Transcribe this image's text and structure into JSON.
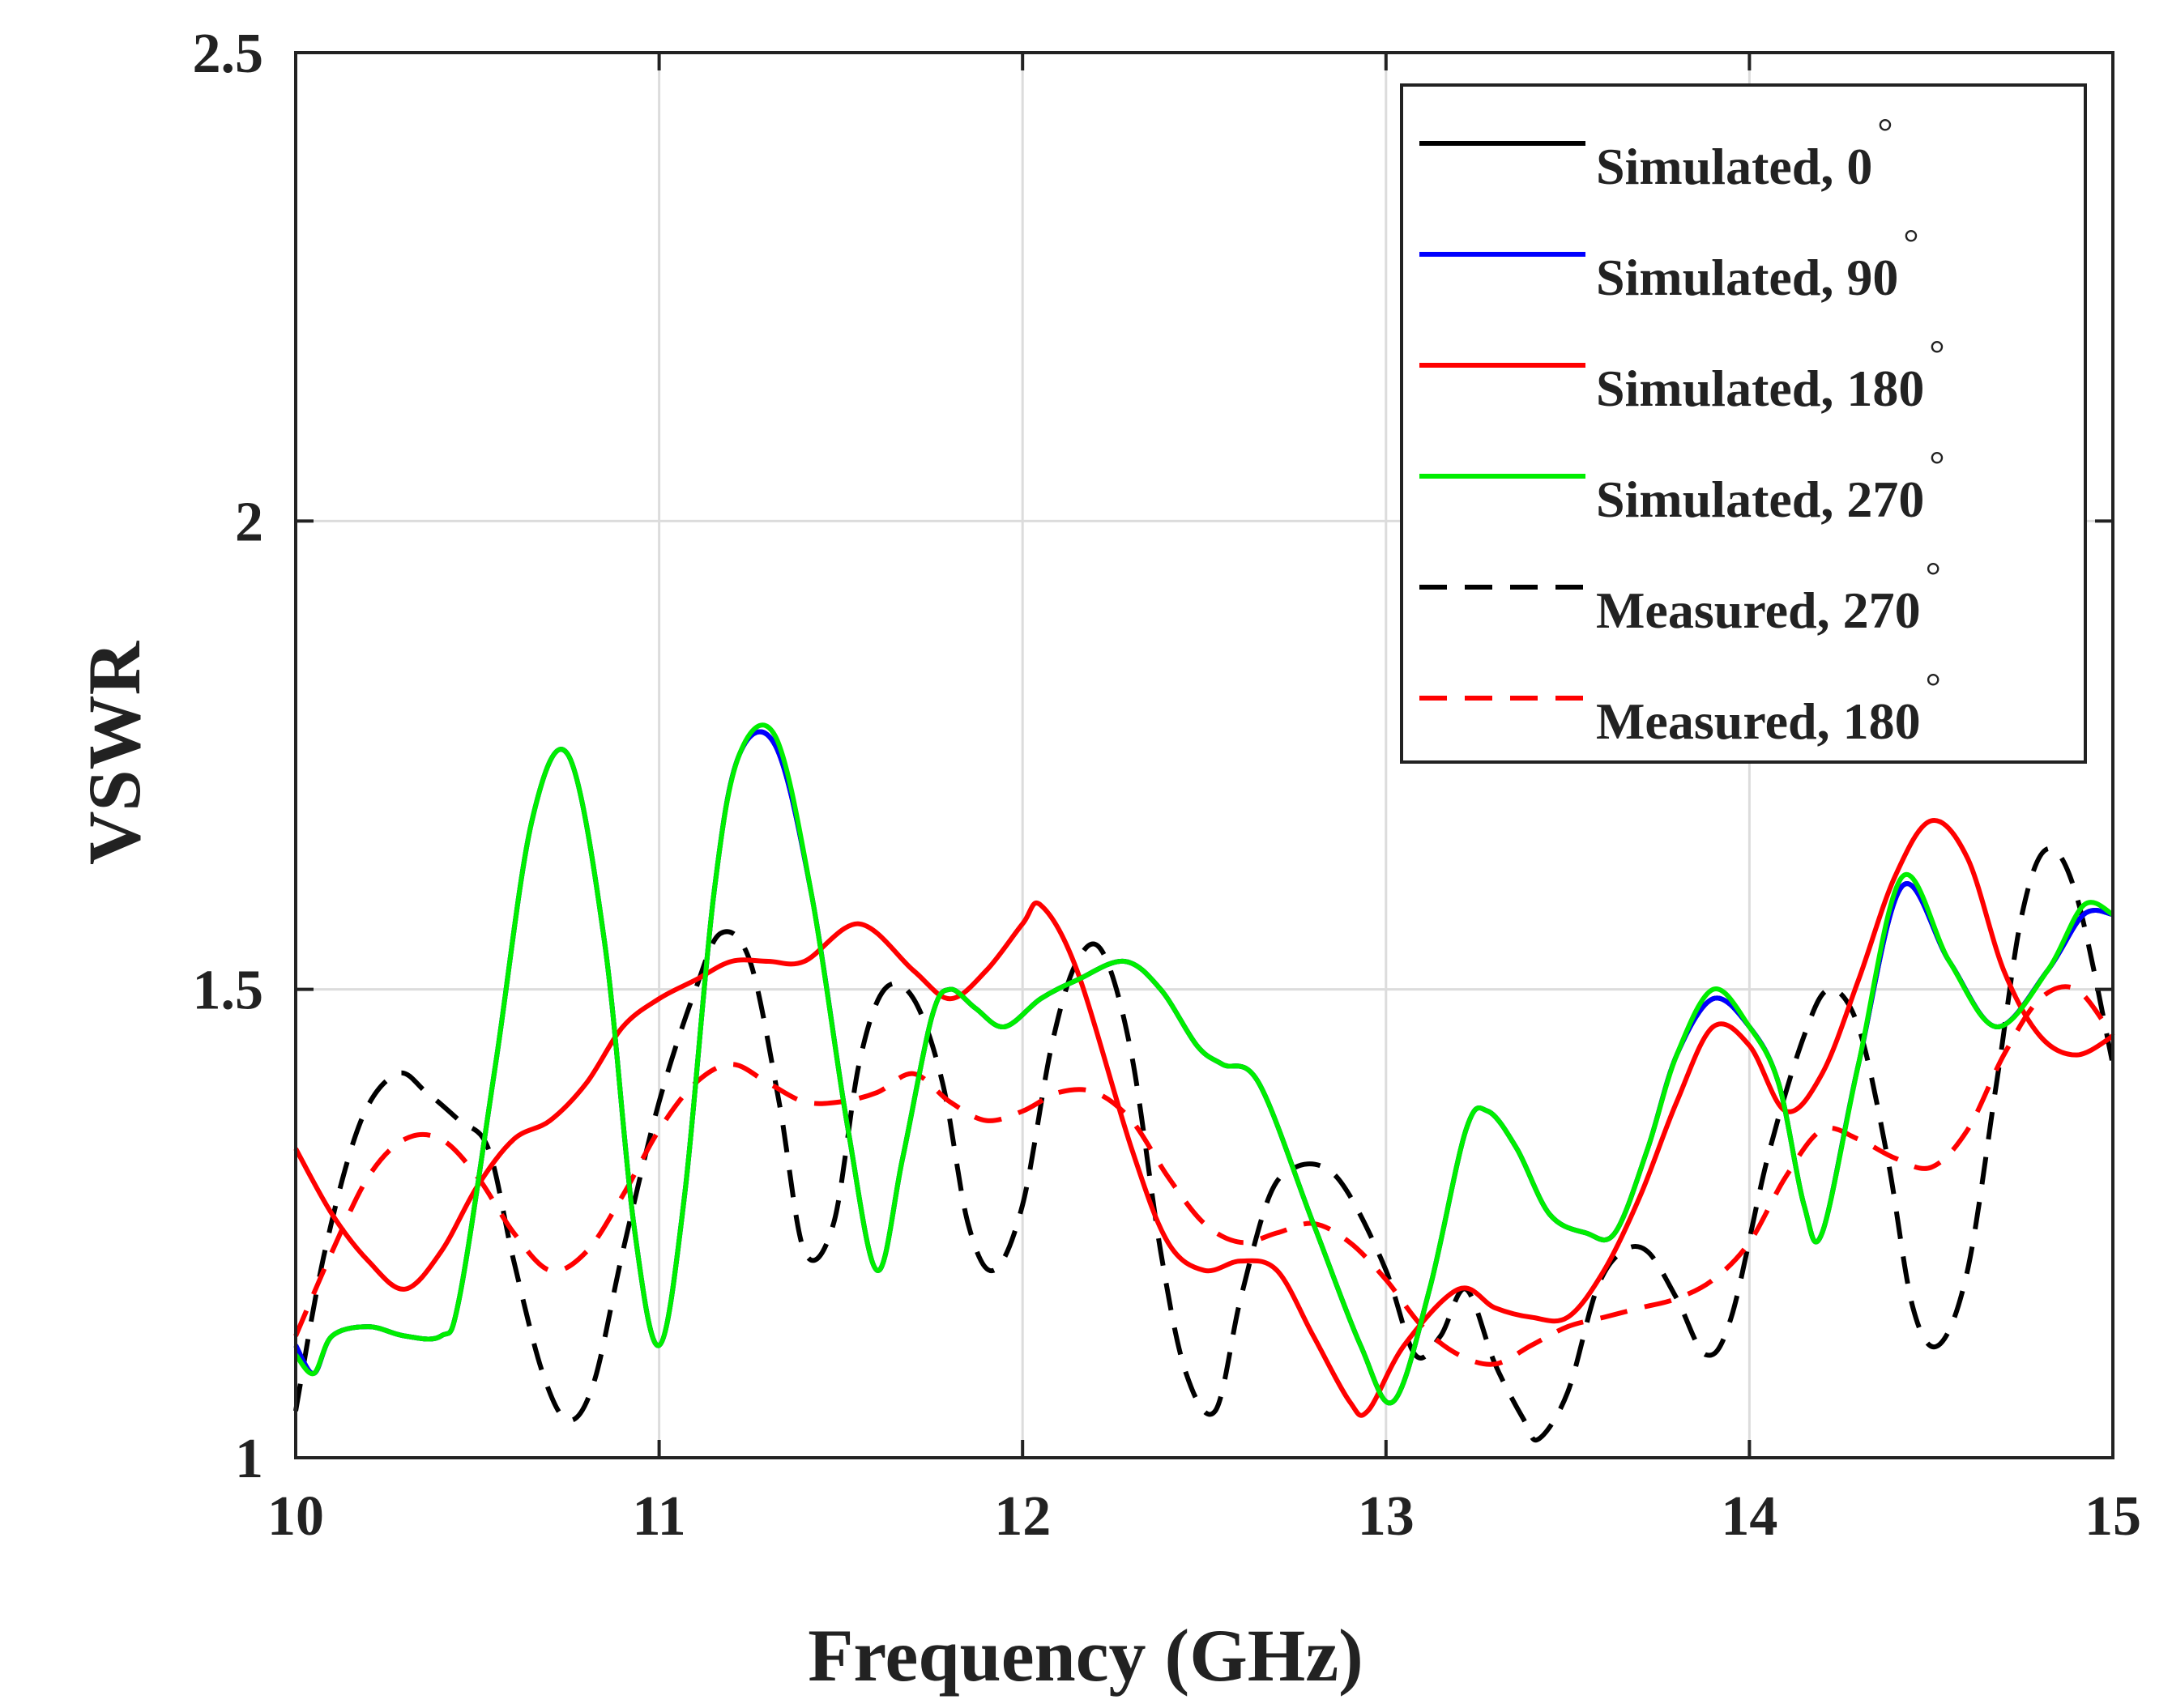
{
  "chart_data": {
    "type": "line",
    "title": "",
    "xlabel": "Frequency (GHz)",
    "ylabel": "VSWR",
    "xlim": [
      10,
      15
    ],
    "ylim": [
      1,
      2.5
    ],
    "xticks": [
      10,
      11,
      12,
      13,
      14,
      15
    ],
    "yticks": [
      1,
      1.5,
      2,
      2.5
    ],
    "xtick_labels": [
      "10",
      "11",
      "12",
      "13",
      "14",
      "15"
    ],
    "ytick_labels": [
      "1",
      "1.5",
      "2",
      "2.5"
    ],
    "grid": true,
    "legend_position": "top-right",
    "degree_symbol": "°",
    "series": [
      {
        "name": "Simulated, 0",
        "color": "#000000",
        "dash": "solid",
        "x": [
          10.0,
          10.05,
          10.1,
          10.2,
          10.3,
          10.4,
          10.45,
          10.55,
          10.65,
          10.75,
          10.85,
          10.93,
          11.0,
          11.07,
          11.15,
          11.22,
          11.32,
          11.42,
          11.52,
          11.6,
          11.67,
          11.75,
          11.8,
          11.87,
          11.95,
          12.05,
          12.15,
          12.28,
          12.38,
          12.48,
          12.55,
          12.65,
          12.8,
          12.93,
          13.02,
          13.12,
          13.22,
          13.28,
          13.36,
          13.45,
          13.55,
          13.63,
          13.72,
          13.8,
          13.9,
          14.0,
          14.08,
          14.15,
          14.2,
          14.3,
          14.42,
          14.55,
          14.68,
          14.82,
          14.92,
          15.0
        ],
        "y": [
          1.12,
          1.09,
          1.13,
          1.14,
          1.13,
          1.13,
          1.17,
          1.42,
          1.68,
          1.75,
          1.55,
          1.25,
          1.12,
          1.28,
          1.6,
          1.75,
          1.76,
          1.6,
          1.35,
          1.2,
          1.32,
          1.47,
          1.5,
          1.48,
          1.46,
          1.49,
          1.51,
          1.53,
          1.5,
          1.44,
          1.42,
          1.4,
          1.25,
          1.12,
          1.06,
          1.18,
          1.35,
          1.37,
          1.33,
          1.26,
          1.24,
          1.24,
          1.33,
          1.43,
          1.49,
          1.46,
          1.4,
          1.27,
          1.24,
          1.42,
          1.61,
          1.53,
          1.46,
          1.52,
          1.58,
          1.58
        ]
      },
      {
        "name": "Simulated, 90",
        "color": "#0000ff",
        "dash": "solid",
        "x": [
          10.0,
          10.05,
          10.1,
          10.2,
          10.3,
          10.4,
          10.45,
          10.55,
          10.65,
          10.75,
          10.85,
          10.93,
          11.0,
          11.07,
          11.15,
          11.22,
          11.32,
          11.42,
          11.52,
          11.6,
          11.67,
          11.75,
          11.8,
          11.87,
          11.95,
          12.05,
          12.15,
          12.28,
          12.38,
          12.48,
          12.55,
          12.65,
          12.8,
          12.93,
          13.02,
          13.12,
          13.22,
          13.28,
          13.36,
          13.45,
          13.55,
          13.63,
          13.72,
          13.8,
          13.9,
          14.0,
          14.08,
          14.15,
          14.2,
          14.3,
          14.42,
          14.55,
          14.68,
          14.82,
          14.92,
          15.0
        ],
        "y": [
          1.12,
          1.09,
          1.13,
          1.14,
          1.13,
          1.13,
          1.17,
          1.42,
          1.68,
          1.75,
          1.55,
          1.25,
          1.12,
          1.28,
          1.6,
          1.75,
          1.76,
          1.6,
          1.35,
          1.2,
          1.32,
          1.47,
          1.5,
          1.48,
          1.46,
          1.49,
          1.51,
          1.53,
          1.5,
          1.44,
          1.42,
          1.4,
          1.25,
          1.12,
          1.06,
          1.18,
          1.35,
          1.37,
          1.33,
          1.26,
          1.24,
          1.24,
          1.33,
          1.43,
          1.49,
          1.46,
          1.4,
          1.27,
          1.24,
          1.42,
          1.61,
          1.53,
          1.46,
          1.52,
          1.58,
          1.58
        ]
      },
      {
        "name": "Simulated, 180",
        "color": "#ff0000",
        "dash": "solid",
        "x": [
          10.0,
          10.1,
          10.2,
          10.3,
          10.4,
          10.5,
          10.6,
          10.7,
          10.8,
          10.9,
          11.0,
          11.1,
          11.2,
          11.3,
          11.4,
          11.55,
          11.7,
          11.8,
          11.9,
          12.0,
          12.05,
          12.15,
          12.3,
          12.4,
          12.5,
          12.6,
          12.7,
          12.8,
          12.9,
          12.95,
          13.05,
          13.2,
          13.3,
          13.4,
          13.5,
          13.6,
          13.7,
          13.8,
          13.9,
          14.0,
          14.1,
          14.2,
          14.3,
          14.4,
          14.5,
          14.6,
          14.7,
          14.8,
          14.9,
          15.0
        ],
        "y": [
          1.33,
          1.26,
          1.21,
          1.18,
          1.22,
          1.29,
          1.34,
          1.36,
          1.4,
          1.46,
          1.49,
          1.51,
          1.53,
          1.53,
          1.53,
          1.57,
          1.52,
          1.49,
          1.52,
          1.57,
          1.59,
          1.52,
          1.33,
          1.23,
          1.2,
          1.21,
          1.2,
          1.13,
          1.06,
          1.05,
          1.12,
          1.18,
          1.16,
          1.15,
          1.15,
          1.2,
          1.28,
          1.38,
          1.46,
          1.44,
          1.37,
          1.41,
          1.51,
          1.62,
          1.68,
          1.64,
          1.52,
          1.45,
          1.43,
          1.45
        ]
      },
      {
        "name": "Simulated, 270",
        "color": "#00ee00",
        "dash": "solid",
        "x": [
          10.0,
          10.05,
          10.1,
          10.2,
          10.3,
          10.4,
          10.45,
          10.55,
          10.65,
          10.75,
          10.85,
          10.93,
          11.0,
          11.07,
          11.15,
          11.22,
          11.32,
          11.42,
          11.52,
          11.6,
          11.67,
          11.75,
          11.8,
          11.87,
          11.95,
          12.05,
          12.15,
          12.28,
          12.38,
          12.48,
          12.55,
          12.65,
          12.8,
          12.93,
          13.02,
          13.12,
          13.22,
          13.28,
          13.36,
          13.45,
          13.55,
          13.63,
          13.72,
          13.8,
          13.9,
          14.0,
          14.08,
          14.15,
          14.2,
          14.3,
          14.42,
          14.55,
          14.68,
          14.82,
          14.92,
          15.0
        ],
        "y": [
          1.11,
          1.09,
          1.13,
          1.14,
          1.13,
          1.13,
          1.17,
          1.42,
          1.68,
          1.75,
          1.55,
          1.25,
          1.12,
          1.28,
          1.6,
          1.75,
          1.77,
          1.6,
          1.35,
          1.2,
          1.32,
          1.47,
          1.5,
          1.48,
          1.46,
          1.49,
          1.51,
          1.53,
          1.5,
          1.44,
          1.42,
          1.4,
          1.25,
          1.12,
          1.06,
          1.18,
          1.35,
          1.37,
          1.33,
          1.26,
          1.24,
          1.24,
          1.33,
          1.43,
          1.5,
          1.46,
          1.4,
          1.27,
          1.24,
          1.42,
          1.62,
          1.53,
          1.46,
          1.52,
          1.59,
          1.58
        ]
      },
      {
        "name": "Measured, 270",
        "color": "#000000",
        "dash": "dashed",
        "x": [
          10.0,
          10.08,
          10.18,
          10.28,
          10.36,
          10.45,
          10.53,
          10.6,
          10.68,
          10.75,
          10.82,
          10.9,
          11.0,
          11.1,
          11.17,
          11.25,
          11.33,
          11.4,
          11.48,
          11.55,
          11.62,
          11.7,
          11.78,
          11.85,
          11.92,
          12.0,
          12.08,
          12.15,
          12.22,
          12.3,
          12.38,
          12.45,
          12.53,
          12.6,
          12.68,
          12.75,
          12.83,
          12.9,
          13.0,
          13.08,
          13.15,
          13.22,
          13.3,
          13.38,
          13.42,
          13.5,
          13.58,
          13.65,
          13.72,
          13.8,
          13.88,
          13.95,
          14.05,
          14.15,
          14.22,
          14.3,
          14.38,
          14.45,
          14.52,
          14.6,
          14.68,
          14.75,
          14.82,
          14.9,
          15.0
        ],
        "y": [
          1.05,
          1.22,
          1.36,
          1.41,
          1.39,
          1.36,
          1.33,
          1.21,
          1.09,
          1.04,
          1.08,
          1.22,
          1.38,
          1.5,
          1.56,
          1.53,
          1.38,
          1.22,
          1.25,
          1.42,
          1.5,
          1.49,
          1.4,
          1.25,
          1.2,
          1.27,
          1.44,
          1.53,
          1.54,
          1.43,
          1.22,
          1.09,
          1.05,
          1.17,
          1.28,
          1.31,
          1.31,
          1.28,
          1.2,
          1.11,
          1.13,
          1.18,
          1.1,
          1.04,
          1.02,
          1.07,
          1.18,
          1.22,
          1.22,
          1.17,
          1.11,
          1.15,
          1.32,
          1.45,
          1.5,
          1.46,
          1.32,
          1.16,
          1.12,
          1.2,
          1.4,
          1.58,
          1.65,
          1.6,
          1.42
        ]
      },
      {
        "name": "Measured, 180",
        "color": "#ff0000",
        "dash": "dashed",
        "x": [
          10.0,
          10.1,
          10.2,
          10.3,
          10.4,
          10.5,
          10.6,
          10.7,
          10.8,
          10.9,
          11.0,
          11.1,
          11.2,
          11.3,
          11.4,
          11.5,
          11.6,
          11.7,
          11.8,
          11.9,
          12.0,
          12.1,
          12.2,
          12.3,
          12.4,
          12.5,
          12.6,
          12.7,
          12.8,
          12.9,
          13.0,
          13.1,
          13.2,
          13.3,
          13.4,
          13.5,
          13.6,
          13.7,
          13.8,
          13.9,
          14.0,
          14.1,
          14.2,
          14.3,
          14.4,
          14.5,
          14.6,
          14.7,
          14.8,
          14.9,
          15.0
        ],
        "y": [
          1.13,
          1.22,
          1.3,
          1.34,
          1.34,
          1.3,
          1.24,
          1.2,
          1.22,
          1.28,
          1.35,
          1.4,
          1.42,
          1.4,
          1.38,
          1.38,
          1.39,
          1.41,
          1.38,
          1.36,
          1.37,
          1.39,
          1.39,
          1.36,
          1.3,
          1.25,
          1.23,
          1.24,
          1.25,
          1.23,
          1.19,
          1.14,
          1.11,
          1.1,
          1.12,
          1.14,
          1.15,
          1.16,
          1.17,
          1.19,
          1.23,
          1.3,
          1.35,
          1.34,
          1.32,
          1.31,
          1.35,
          1.43,
          1.49,
          1.5,
          1.45
        ]
      }
    ]
  }
}
